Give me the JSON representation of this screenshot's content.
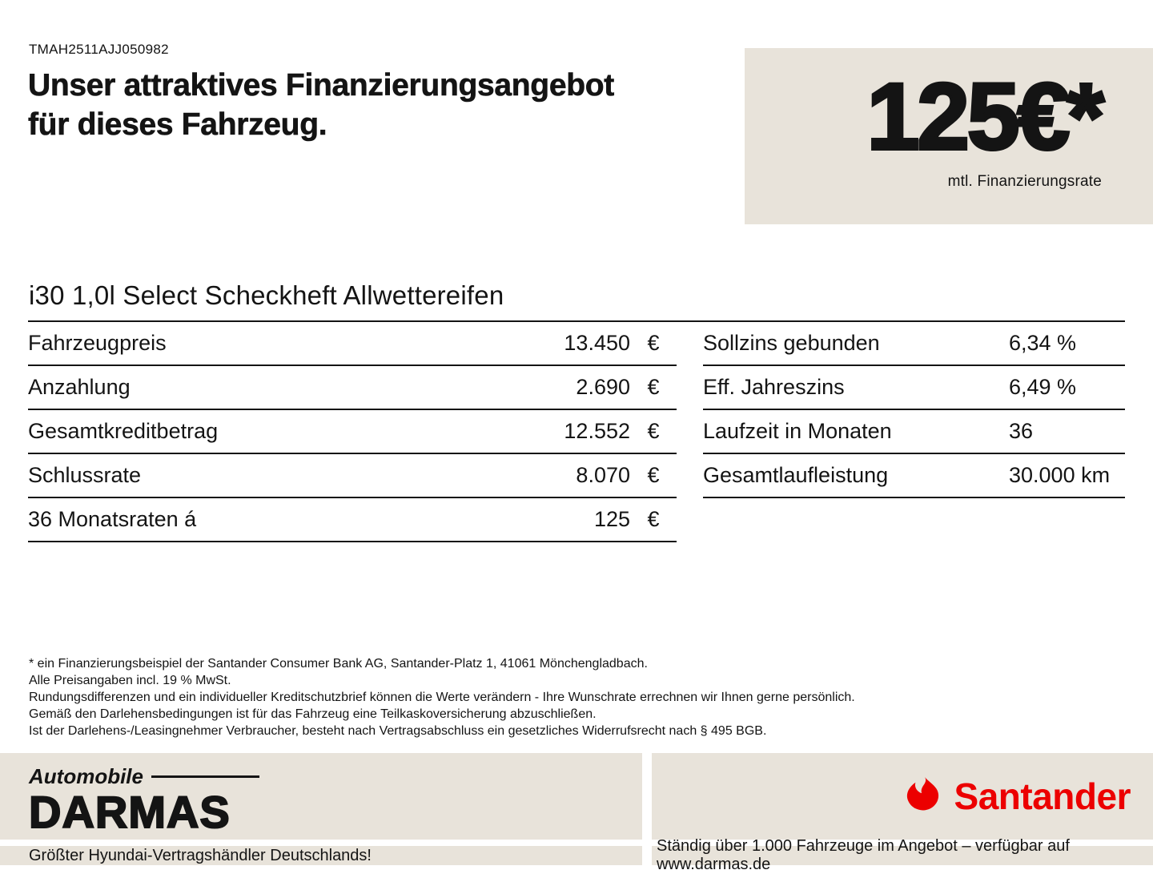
{
  "colors": {
    "beige": "#e8e3da",
    "santander_red": "#ec0000",
    "ink": "#141414"
  },
  "header": {
    "vin": "TMAH2511AJJ050982",
    "headline_line1": "Unser attraktives Finanzierungsangebot",
    "headline_line2": "für dieses Fahrzeug.",
    "rate_value": "125€*",
    "rate_caption": "mtl. Finanzierungsrate"
  },
  "vehicle_title": "i30 1,0l Select Scheckheft Allwettereifen",
  "finance_table": {
    "left": [
      {
        "label": "Fahrzeugpreis",
        "value": "13.450",
        "unit": "€"
      },
      {
        "label": "Anzahlung",
        "value": "2.690",
        "unit": "€"
      },
      {
        "label": "Gesamtkreditbetrag",
        "value": "12.552",
        "unit": "€"
      },
      {
        "label": "Schlussrate",
        "value": "8.070",
        "unit": "€"
      },
      {
        "label": "36 Monatsraten á",
        "value": "125",
        "unit": "€"
      }
    ],
    "right": [
      {
        "label": "Sollzins gebunden",
        "value": "6,34 %"
      },
      {
        "label": "Eff. Jahreszins",
        "value": "6,49 %"
      },
      {
        "label": "Laufzeit in Monaten",
        "value": "36"
      },
      {
        "label": "Gesamtlaufleistung",
        "value": "30.000 km"
      }
    ]
  },
  "disclaimer_lines": [
    "* ein Finanzierungsbeispiel der Santander Consumer Bank AG, Santander-Platz 1, 41061 Mönchengladbach.",
    "Alle Preisangaben incl. 19 % MwSt.",
    "Rundungsdifferenzen und ein individueller Kreditschutzbrief können die Werte verändern - Ihre Wunschrate errechnen wir Ihnen gerne persönlich.",
    "Gemäß den Darlehensbedingungen ist für das Fahrzeug eine Teilkaskoversicherung abzuschließen.",
    "Ist der Darlehens-/Leasingnehmer Verbraucher, besteht nach Vertragsabschluss ein gesetzliches Widerrufsrecht nach § 495 BGB."
  ],
  "footer": {
    "dealer_logo_top": "Automobile",
    "dealer_logo_main": "DARMAS",
    "santander_label": "Santander",
    "bottom_left_text": "Größter Hyundai-Vertragshändler Deutschlands!",
    "bottom_right_text": "Ständig über 1.000 Fahrzeuge im Angebot – verfügbar auf www.darmas.de"
  }
}
